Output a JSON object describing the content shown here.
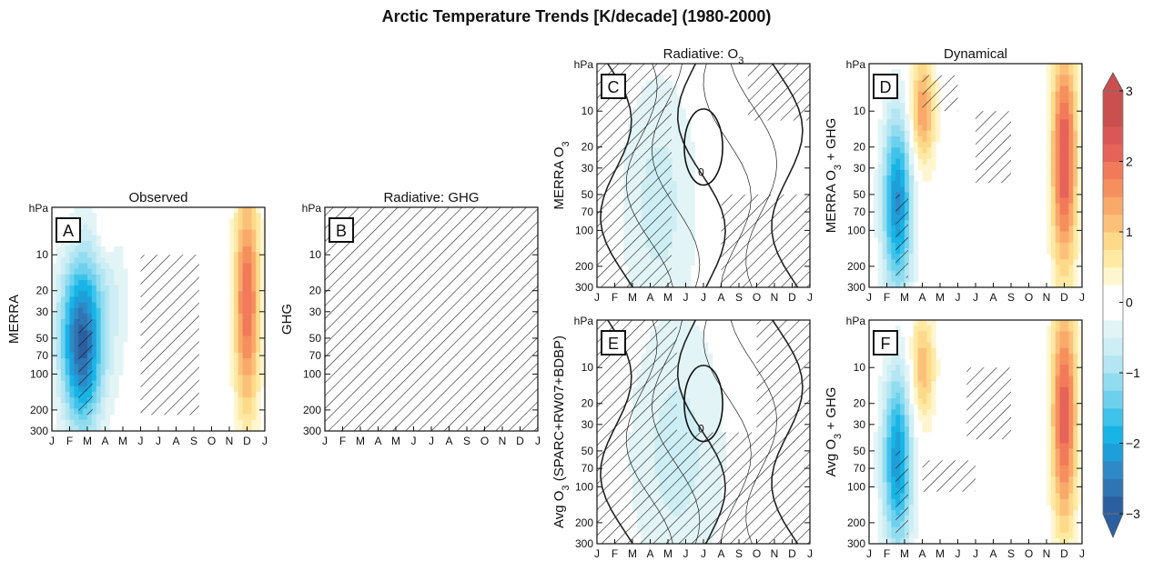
{
  "figure": {
    "title": "Arctic Temperature Trends [K/decade] (1980-2000)"
  },
  "chart_data": [
    {
      "type": "heatmap",
      "panel": "A",
      "title": "Observed",
      "ylabel": "MERRA",
      "ylabel_sub": "",
      "ylabel_post": "",
      "x": [
        "J",
        "F",
        "M",
        "A",
        "M",
        "J",
        "J",
        "A",
        "S",
        "O",
        "N",
        "D",
        "J"
      ],
      "yaxis_unit": "hPa",
      "yticks": [
        10,
        20,
        30,
        50,
        70,
        100,
        200,
        300
      ],
      "ylim": [
        300,
        4
      ],
      "ylog": true,
      "hatch_full": false,
      "contours": false,
      "features": [
        {
          "month": 1.8,
          "p": 60,
          "value": -2.2,
          "sx": 0.7,
          "sy": 0.75
        },
        {
          "month": 1.0,
          "p": 45,
          "value": -0.9,
          "sx": 0.7,
          "sy": 0.7
        },
        {
          "month": 3.0,
          "p": 25,
          "value": -0.6,
          "sx": 0.9,
          "sy": 0.9
        },
        {
          "month": 11.0,
          "p": 25,
          "value": 2.0,
          "sx": 0.5,
          "sy": 1.0
        },
        {
          "month": 3.0,
          "p": 6,
          "value": 0.5,
          "sx": 0.4,
          "sy": 0.3
        }
      ],
      "hatch_regions": [
        {
          "type": "rect",
          "m0": 5.0,
          "m1": 8.3,
          "p0": 10,
          "p1": 220
        },
        {
          "type": "rect",
          "m0": 1.5,
          "m1": 2.3,
          "p0": 35,
          "p1": 220
        }
      ]
    },
    {
      "type": "heatmap",
      "panel": "B",
      "title": "Radiative: GHG",
      "ylabel": "GHG",
      "ylabel_sub": "",
      "ylabel_post": "",
      "x": [
        "J",
        "F",
        "M",
        "A",
        "M",
        "J",
        "J",
        "A",
        "S",
        "O",
        "N",
        "D",
        "J"
      ],
      "yaxis_unit": "hPa",
      "yticks": [
        10,
        20,
        30,
        50,
        70,
        100,
        200,
        300
      ],
      "ylim": [
        300,
        4
      ],
      "ylog": true,
      "hatch_full": true,
      "contours": false,
      "features": [],
      "hatch_regions": []
    },
    {
      "type": "heatmap",
      "panel": "C",
      "title": "Radiative: O",
      "title_sub": "3",
      "ylabel": "MERRA O",
      "ylabel_sub": "3",
      "ylabel_post": "",
      "x": [
        "J",
        "F",
        "M",
        "A",
        "M",
        "J",
        "J",
        "A",
        "S",
        "O",
        "N",
        "D",
        "J"
      ],
      "yaxis_unit": "hPa",
      "yticks": [
        10,
        20,
        30,
        50,
        70,
        100,
        200,
        300
      ],
      "ylim": [
        300,
        4
      ],
      "ylog": true,
      "hatch_full": false,
      "contours": true,
      "contour_label": "0",
      "features": [
        {
          "month": 3.5,
          "p": 60,
          "value": -0.6,
          "sx": 1.6,
          "sy": 1.2
        }
      ],
      "hatch_regions": [
        {
          "type": "rect",
          "m0": 0.0,
          "m1": 4.2,
          "p0": 4,
          "p1": 300
        },
        {
          "type": "rect",
          "m0": 7.0,
          "m1": 12.0,
          "p0": 50,
          "p1": 300
        },
        {
          "type": "rect",
          "m0": 8.5,
          "m1": 12.0,
          "p0": 4,
          "p1": 12
        }
      ]
    },
    {
      "type": "heatmap",
      "panel": "D",
      "title": "Dynamical",
      "ylabel": "MERRA O",
      "ylabel_sub": "3",
      "ylabel_post": " + GHG",
      "x": [
        "J",
        "F",
        "M",
        "A",
        "M",
        "J",
        "J",
        "A",
        "S",
        "O",
        "N",
        "D",
        "J"
      ],
      "yaxis_unit": "hPa",
      "yticks": [
        10,
        20,
        30,
        50,
        70,
        100,
        200,
        300
      ],
      "ylim": [
        300,
        4
      ],
      "ylog": true,
      "hatch_full": false,
      "contours": false,
      "features": [
        {
          "month": 1.6,
          "p": 60,
          "value": -2.3,
          "sx": 0.6,
          "sy": 0.8
        },
        {
          "month": 11.0,
          "p": 25,
          "value": 2.3,
          "sx": 0.5,
          "sy": 1.0
        },
        {
          "month": 3.0,
          "p": 10,
          "value": 1.5,
          "sx": 0.5,
          "sy": 0.5
        }
      ],
      "hatch_regions": [
        {
          "type": "rect",
          "m0": 1.5,
          "m1": 2.2,
          "p0": 50,
          "p1": 250
        },
        {
          "type": "rect",
          "m0": 3.0,
          "m1": 5.0,
          "p0": 5,
          "p1": 10
        },
        {
          "type": "rect",
          "m0": 6.0,
          "m1": 8.0,
          "p0": 10,
          "p1": 40
        }
      ]
    },
    {
      "type": "heatmap",
      "panel": "E",
      "title": "",
      "ylabel": "Avg O",
      "ylabel_sub": "3",
      "ylabel_post": " (SPARC+RW07+BDBP)",
      "x": [
        "J",
        "F",
        "M",
        "A",
        "M",
        "J",
        "J",
        "A",
        "S",
        "O",
        "N",
        "D",
        "J"
      ],
      "yaxis_unit": "hPa",
      "yticks": [
        10,
        20,
        30,
        50,
        70,
        100,
        200,
        300
      ],
      "ylim": [
        300,
        4
      ],
      "ylog": true,
      "hatch_full": false,
      "contours": true,
      "contour_label": "0",
      "features": [
        {
          "month": 4.5,
          "p": 50,
          "value": -0.6,
          "sx": 2.0,
          "sy": 1.3
        }
      ],
      "hatch_regions": [
        {
          "type": "rect",
          "m0": 0.0,
          "m1": 12.0,
          "p0": 35,
          "p1": 300
        },
        {
          "type": "rect",
          "m0": 0.0,
          "m1": 4.5,
          "p0": 4,
          "p1": 35
        },
        {
          "type": "rect",
          "m0": 9.0,
          "m1": 12.0,
          "p0": 4,
          "p1": 35
        }
      ]
    },
    {
      "type": "heatmap",
      "panel": "F",
      "title": "",
      "ylabel": "Avg O",
      "ylabel_sub": "3",
      "ylabel_post": " + GHG",
      "x": [
        "J",
        "F",
        "M",
        "A",
        "M",
        "J",
        "J",
        "A",
        "S",
        "O",
        "N",
        "D",
        "J"
      ],
      "yaxis_unit": "hPa",
      "yticks": [
        10,
        20,
        30,
        50,
        70,
        100,
        200,
        300
      ],
      "ylim": [
        300,
        4
      ],
      "ylog": true,
      "hatch_full": false,
      "contours": false,
      "features": [
        {
          "month": 1.6,
          "p": 60,
          "value": -2.2,
          "sx": 0.6,
          "sy": 0.8
        },
        {
          "month": 11.0,
          "p": 25,
          "value": 2.2,
          "sx": 0.5,
          "sy": 1.0
        },
        {
          "month": 3.0,
          "p": 10,
          "value": 1.2,
          "sx": 0.5,
          "sy": 0.5
        }
      ],
      "hatch_regions": [
        {
          "type": "rect",
          "m0": 1.5,
          "m1": 2.2,
          "p0": 50,
          "p1": 250
        },
        {
          "type": "rect",
          "m0": 5.5,
          "m1": 8.0,
          "p0": 10,
          "p1": 40
        },
        {
          "type": "rect",
          "m0": 3.0,
          "m1": 6.0,
          "p0": 60,
          "p1": 110
        }
      ]
    }
  ],
  "colorbar": {
    "range": [
      -3,
      3
    ],
    "ticks": [
      "3",
      "2",
      "1",
      "0",
      "−1",
      "−2",
      "−3"
    ],
    "tick_values": [
      3,
      2,
      1,
      0,
      -1,
      -2,
      -3
    ],
    "levels": [
      -3,
      -2.75,
      -2.5,
      -2.25,
      -2,
      -1.75,
      -1.5,
      -1.25,
      -1,
      -0.75,
      -0.5,
      -0.25,
      0.25,
      0.5,
      0.75,
      1,
      1.25,
      1.5,
      1.75,
      2,
      2.25,
      2.5,
      2.75,
      3
    ],
    "colors": [
      "#2b5fa0",
      "#2f74b3",
      "#2f89c6",
      "#1e9fd9",
      "#18b4e6",
      "#3fc3ea",
      "#6dd1ee",
      "#92dcf0",
      "#b3e6f2",
      "#cdeef4",
      "#e2f4f6",
      "#ffffff",
      "#fff6d0",
      "#ffe9a3",
      "#fdd98a",
      "#fbc17a",
      "#f9a96a",
      "#f58f5d",
      "#f17a5a",
      "#e66359",
      "#d95757",
      "#c9504f",
      "#c9504f"
    ],
    "colors_values": [
      -3,
      -2.75,
      -2.5,
      -2.25,
      -2,
      -1.75,
      -1.5,
      -1.25,
      -1,
      -0.75,
      -0.5,
      -0.25,
      0.25,
      0.5,
      0.75,
      1,
      1.25,
      1.5,
      1.75,
      2,
      2.25,
      2.5,
      2.75
    ]
  }
}
